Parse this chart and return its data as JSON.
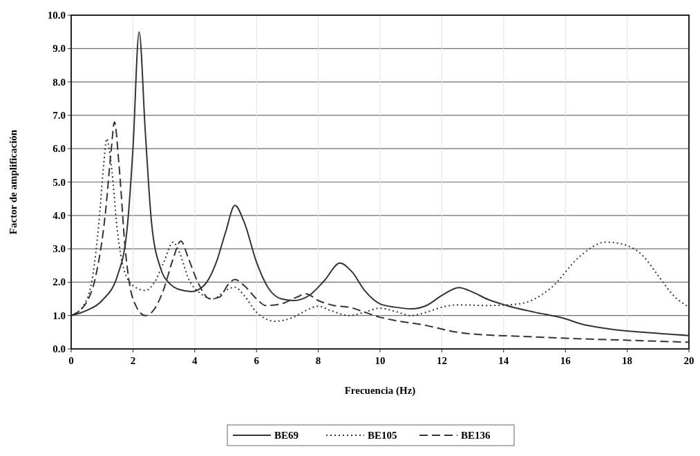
{
  "chart_data": {
    "type": "line",
    "xlabel": "Frecuencia (Hz)",
    "ylabel": "Factor de amplificación",
    "xlim": [
      0,
      20
    ],
    "xticks": [
      0,
      2,
      4,
      6,
      8,
      10,
      12,
      14,
      16,
      18,
      20
    ],
    "ylim": [
      0,
      10
    ],
    "yticks": [
      {
        "value": 0,
        "label": "0.0"
      },
      {
        "value": 1,
        "label": "1.0"
      },
      {
        "value": 2,
        "label": "2.0"
      },
      {
        "value": 3,
        "label": "3.0"
      },
      {
        "value": 4,
        "label": "4.0"
      },
      {
        "value": 5,
        "label": "5.0"
      },
      {
        "value": 6,
        "label": "6.0"
      },
      {
        "value": 7,
        "label": "7.0"
      },
      {
        "value": 8,
        "label": "8.0"
      },
      {
        "value": 9,
        "label": "9.0"
      },
      {
        "value": 10,
        "label": "10.0"
      }
    ],
    "grid": true,
    "legend": "bottom",
    "marker": "none",
    "series": [
      {
        "name": "BE69",
        "color": "#333333",
        "line_style": "solid",
        "x": [
          0,
          0.5,
          1,
          1.5,
          1.8,
          2.0,
          2.2,
          2.4,
          2.6,
          2.9,
          3.2,
          3.5,
          3.9,
          4.3,
          4.7,
          5.0,
          5.3,
          5.6,
          6.0,
          6.4,
          6.8,
          7.2,
          7.7,
          8.2,
          8.7,
          9.1,
          9.5,
          10.0,
          10.5,
          11.0,
          11.5,
          12.0,
          12.55,
          13.0,
          13.5,
          14.1,
          15.0,
          15.9,
          16.5,
          17.4,
          18.5,
          20
        ],
        "values": [
          1.0,
          1.15,
          1.45,
          2.2,
          3.5,
          6.0,
          9.5,
          6.5,
          3.8,
          2.4,
          1.95,
          1.78,
          1.72,
          1.9,
          2.6,
          3.5,
          4.3,
          3.8,
          2.6,
          1.8,
          1.5,
          1.45,
          1.6,
          2.05,
          2.57,
          2.3,
          1.75,
          1.35,
          1.25,
          1.2,
          1.3,
          1.6,
          1.84,
          1.7,
          1.48,
          1.3,
          1.1,
          0.93,
          0.75,
          0.6,
          0.5,
          0.4
        ]
      },
      {
        "name": "BE105",
        "color": "#333333",
        "line_style": "dotted",
        "x": [
          0,
          0.4,
          0.7,
          0.9,
          1.05,
          1.15,
          1.3,
          1.5,
          1.7,
          2.0,
          2.4,
          2.7,
          3.0,
          3.3,
          3.5,
          3.8,
          4.2,
          4.6,
          5.0,
          5.3,
          5.6,
          6.0,
          6.6,
          7.2,
          7.6,
          8.0,
          8.4,
          9.0,
          9.5,
          10.0,
          10.5,
          11.0,
          11.5,
          12.0,
          12.5,
          13.5,
          14.5,
          15.5,
          16.5,
          17.3,
          17.8,
          18.5,
          19.0,
          19.5,
          20
        ],
        "values": [
          1.0,
          1.3,
          2.2,
          3.8,
          5.5,
          6.3,
          5.5,
          3.5,
          2.4,
          1.9,
          1.75,
          2.0,
          2.6,
          3.2,
          2.9,
          2.1,
          1.65,
          1.5,
          1.75,
          1.85,
          1.6,
          1.1,
          0.83,
          0.95,
          1.15,
          1.28,
          1.15,
          1.0,
          1.1,
          1.22,
          1.12,
          1.0,
          1.1,
          1.25,
          1.32,
          1.3,
          1.35,
          1.8,
          2.8,
          3.2,
          3.15,
          2.8,
          2.2,
          1.6,
          1.25
        ]
      },
      {
        "name": "BE136",
        "color": "#333333",
        "line_style": "dashed",
        "x": [
          0,
          0.5,
          0.8,
          1.1,
          1.3,
          1.4,
          1.55,
          1.75,
          2.0,
          2.4,
          2.7,
          3.0,
          3.3,
          3.55,
          3.8,
          4.1,
          4.5,
          4.8,
          5.1,
          5.3,
          5.6,
          6.0,
          6.3,
          6.8,
          7.3,
          7.6,
          8.0,
          8.5,
          9.0,
          9.5,
          10.0,
          10.5,
          11.4,
          12.5,
          13.4,
          14.5,
          16,
          18,
          20
        ],
        "values": [
          1.0,
          1.4,
          2.2,
          4.0,
          6.0,
          6.8,
          5.5,
          3.0,
          1.5,
          1.0,
          1.2,
          1.8,
          2.7,
          3.23,
          2.7,
          2.0,
          1.5,
          1.55,
          1.95,
          2.08,
          1.9,
          1.5,
          1.3,
          1.35,
          1.55,
          1.65,
          1.45,
          1.3,
          1.25,
          1.1,
          0.95,
          0.85,
          0.72,
          0.5,
          0.42,
          0.38,
          0.32,
          0.26,
          0.2
        ]
      }
    ]
  }
}
